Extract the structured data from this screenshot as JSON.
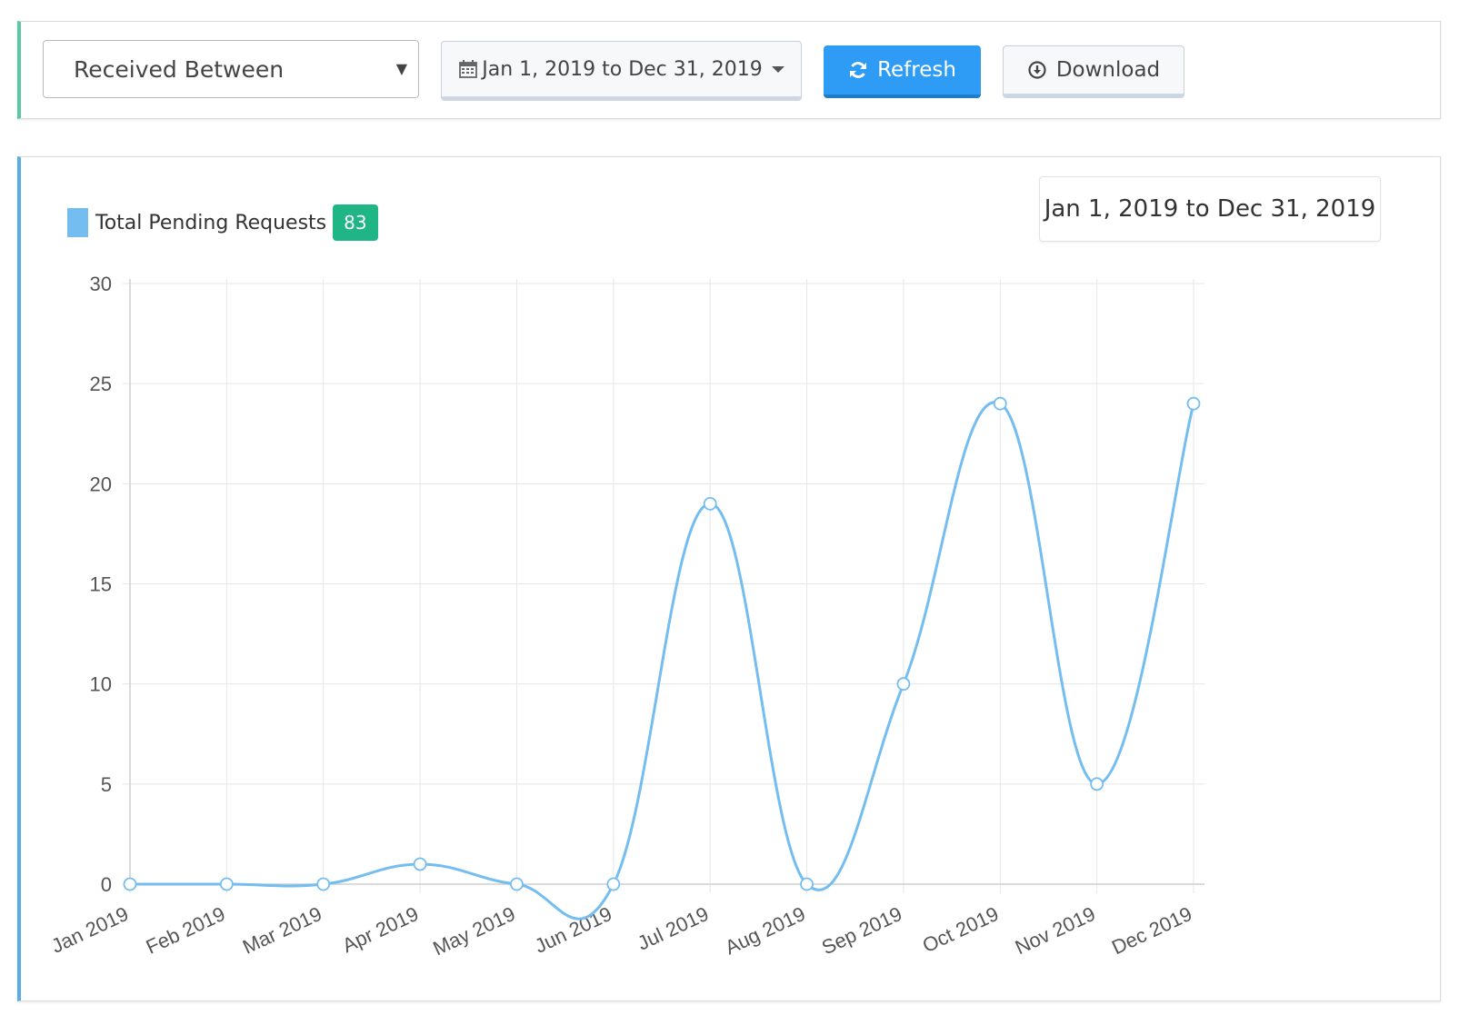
{
  "filter": {
    "select_value": "Received Between",
    "date_range_label": "Jan 1, 2019 to Dec 31, 2019",
    "refresh_label": "Refresh",
    "download_label": "Download"
  },
  "chart_panel": {
    "legend_label": "Total Pending Requests",
    "count": "83",
    "range_label": "Jan 1, 2019 to Dec 31, 2019"
  },
  "colors": {
    "line": "#74bdf0",
    "badge": "#1fb584",
    "refresh": "#2e9cf5"
  },
  "chart_data": {
    "type": "line",
    "categories": [
      "Jan 2019",
      "Feb 2019",
      "Mar 2019",
      "Apr 2019",
      "May 2019",
      "Jun 2019",
      "Jul 2019",
      "Aug 2019",
      "Sep 2019",
      "Oct 2019",
      "Nov 2019",
      "Dec 2019"
    ],
    "series": [
      {
        "name": "Total Pending Requests",
        "values": [
          0,
          0,
          0,
          1,
          0,
          0,
          19,
          0,
          10,
          24,
          5,
          24
        ]
      }
    ],
    "ylim": [
      0,
      30
    ],
    "yticks": [
      0,
      5,
      10,
      15,
      20,
      25,
      30
    ],
    "grid": true,
    "legend": "top-left",
    "curve": "smooth"
  }
}
